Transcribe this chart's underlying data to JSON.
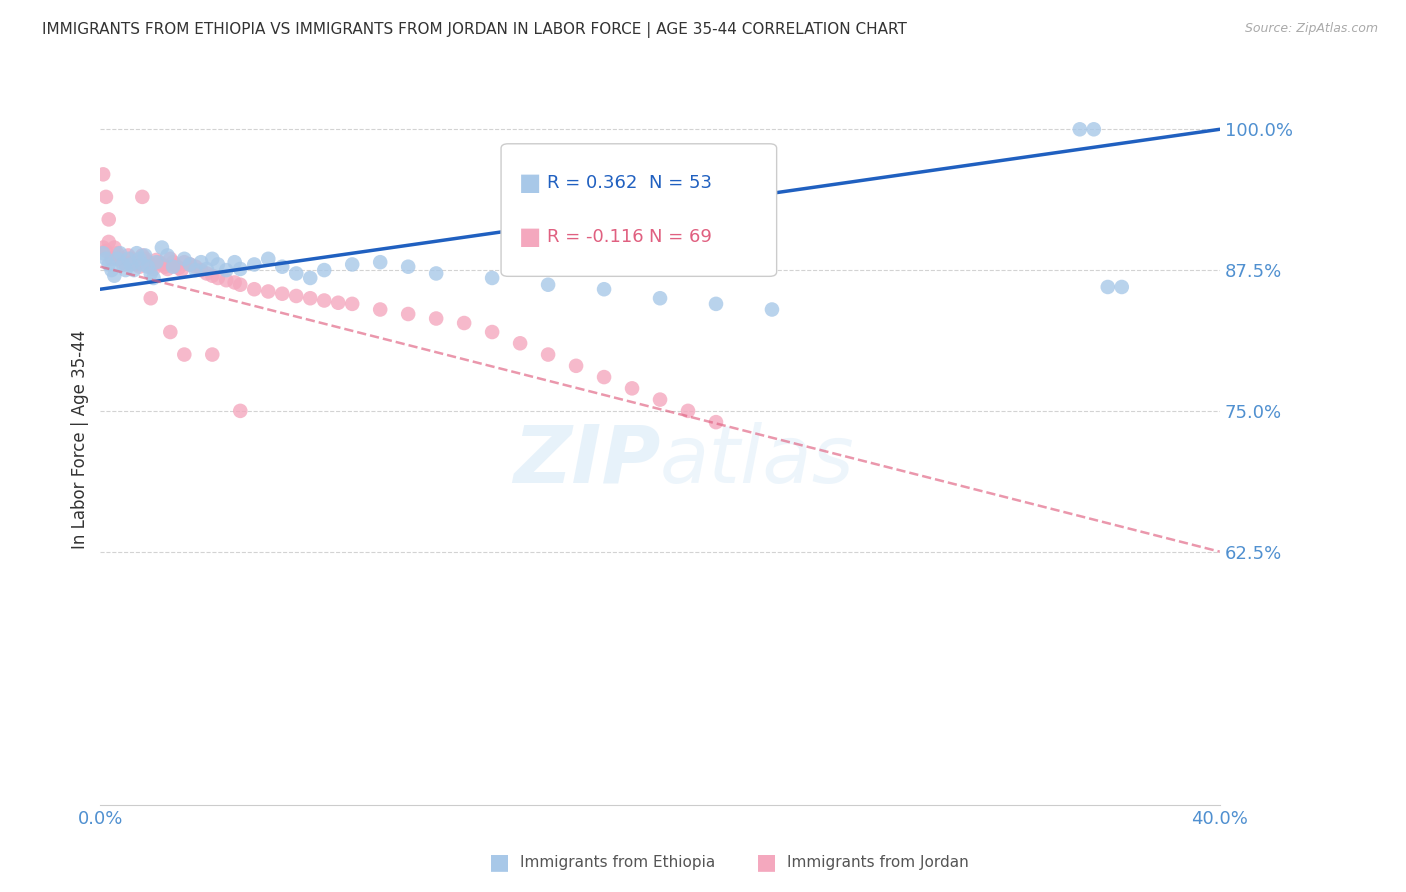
{
  "title": "IMMIGRANTS FROM ETHIOPIA VS IMMIGRANTS FROM JORDAN IN LABOR FORCE | AGE 35-44 CORRELATION CHART",
  "source": "Source: ZipAtlas.com",
  "ylabel": "In Labor Force | Age 35-44",
  "xlim": [
    0.0,
    0.4
  ],
  "ylim": [
    0.4,
    1.05
  ],
  "yticks": [
    0.625,
    0.75,
    0.875,
    1.0
  ],
  "ytick_labels": [
    "62.5%",
    "75.0%",
    "87.5%",
    "100.0%"
  ],
  "xticks": [
    0.0,
    0.4
  ],
  "xtick_labels": [
    "0.0%",
    "40.0%"
  ],
  "legend_r_ethiopia": "R = 0.362",
  "legend_n_ethiopia": "N = 53",
  "legend_r_jordan": "R = -0.116",
  "legend_n_jordan": "N = 69",
  "ethiopia_color": "#a8c8e8",
  "jordan_color": "#f4a8be",
  "trendline_ethiopia_color": "#2060c0",
  "trendline_jordan_color": "#e06080",
  "background_color": "#ffffff",
  "grid_color": "#c8c8c8",
  "axis_label_color": "#5090d0",
  "title_color": "#333333",
  "watermark_text": "ZIPatlas",
  "ethiopia_scatter_x": [
    0.001,
    0.002,
    0.003,
    0.004,
    0.005,
    0.006,
    0.007,
    0.008,
    0.009,
    0.01,
    0.011,
    0.012,
    0.013,
    0.014,
    0.015,
    0.016,
    0.017,
    0.018,
    0.019,
    0.02,
    0.022,
    0.024,
    0.026,
    0.03,
    0.032,
    0.034,
    0.036,
    0.038,
    0.04,
    0.042,
    0.045,
    0.048,
    0.05,
    0.055,
    0.06,
    0.065,
    0.07,
    0.075,
    0.08,
    0.09,
    0.1,
    0.11,
    0.12,
    0.14,
    0.16,
    0.18,
    0.2,
    0.22,
    0.24,
    0.35,
    0.355,
    0.36,
    0.365
  ],
  "ethiopia_scatter_y": [
    0.89,
    0.885,
    0.88,
    0.875,
    0.87,
    0.885,
    0.89,
    0.88,
    0.875,
    0.885,
    0.88,
    0.875,
    0.89,
    0.885,
    0.88,
    0.888,
    0.878,
    0.872,
    0.868,
    0.882,
    0.895,
    0.888,
    0.878,
    0.885,
    0.88,
    0.875,
    0.882,
    0.876,
    0.885,
    0.88,
    0.875,
    0.882,
    0.876,
    0.88,
    0.885,
    0.878,
    0.872,
    0.868,
    0.875,
    0.88,
    0.882,
    0.878,
    0.872,
    0.868,
    0.862,
    0.858,
    0.85,
    0.845,
    0.84,
    1.0,
    1.0,
    0.86,
    0.86
  ],
  "jordan_scatter_x": [
    0.001,
    0.002,
    0.003,
    0.004,
    0.005,
    0.006,
    0.007,
    0.008,
    0.009,
    0.01,
    0.011,
    0.012,
    0.013,
    0.014,
    0.015,
    0.016,
    0.017,
    0.018,
    0.019,
    0.02,
    0.021,
    0.022,
    0.023,
    0.024,
    0.025,
    0.026,
    0.027,
    0.028,
    0.029,
    0.03,
    0.032,
    0.034,
    0.036,
    0.038,
    0.04,
    0.042,
    0.045,
    0.048,
    0.05,
    0.055,
    0.06,
    0.065,
    0.07,
    0.075,
    0.08,
    0.085,
    0.09,
    0.1,
    0.11,
    0.12,
    0.13,
    0.14,
    0.15,
    0.16,
    0.17,
    0.18,
    0.19,
    0.2,
    0.21,
    0.22,
    0.001,
    0.002,
    0.003,
    0.015,
    0.018,
    0.025,
    0.03,
    0.04,
    0.05
  ],
  "jordan_scatter_y": [
    0.895,
    0.892,
    0.9,
    0.885,
    0.895,
    0.89,
    0.886,
    0.882,
    0.88,
    0.888,
    0.885,
    0.882,
    0.88,
    0.878,
    0.888,
    0.885,
    0.882,
    0.878,
    0.876,
    0.884,
    0.882,
    0.88,
    0.878,
    0.876,
    0.885,
    0.882,
    0.879,
    0.877,
    0.875,
    0.882,
    0.88,
    0.878,
    0.875,
    0.872,
    0.87,
    0.868,
    0.866,
    0.864,
    0.862,
    0.858,
    0.856,
    0.854,
    0.852,
    0.85,
    0.848,
    0.846,
    0.845,
    0.84,
    0.836,
    0.832,
    0.828,
    0.82,
    0.81,
    0.8,
    0.79,
    0.78,
    0.77,
    0.76,
    0.75,
    0.74,
    0.96,
    0.94,
    0.92,
    0.94,
    0.85,
    0.82,
    0.8,
    0.8,
    0.75
  ],
  "trendline_ethiopia_x0": 0.0,
  "trendline_ethiopia_x1": 0.4,
  "trendline_ethiopia_y0": 0.858,
  "trendline_ethiopia_y1": 1.0,
  "trendline_jordan_x0": 0.0,
  "trendline_jordan_x1": 0.4,
  "trendline_jordan_y0": 0.878,
  "trendline_jordan_y1": 0.625
}
